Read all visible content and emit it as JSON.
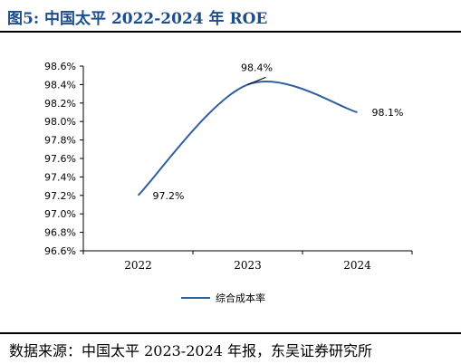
{
  "figure": {
    "title": "图5:  中国太平 2022-2024 年 ROE",
    "source": "数据来源：中国太平 2023-2024 年报，东吴证券研究所"
  },
  "chart_data": {
    "type": "line",
    "title": "",
    "xlabel": "",
    "ylabel": "",
    "categories": [
      "2022",
      "2023",
      "2024"
    ],
    "series": [
      {
        "name": "综合成本率",
        "values": [
          97.2,
          98.4,
          98.1
        ],
        "color": "#2e5f9e"
      }
    ],
    "data_labels": [
      "97.2%",
      "98.4%",
      "98.1%"
    ],
    "ylim": [
      96.6,
      98.6
    ],
    "yticks": [
      96.6,
      96.8,
      97.0,
      97.2,
      97.4,
      97.6,
      97.8,
      98.0,
      98.2,
      98.4,
      98.6
    ],
    "ytick_format": "percent_1dp",
    "smooth": true,
    "grid": false,
    "legend_position": "bottom"
  }
}
